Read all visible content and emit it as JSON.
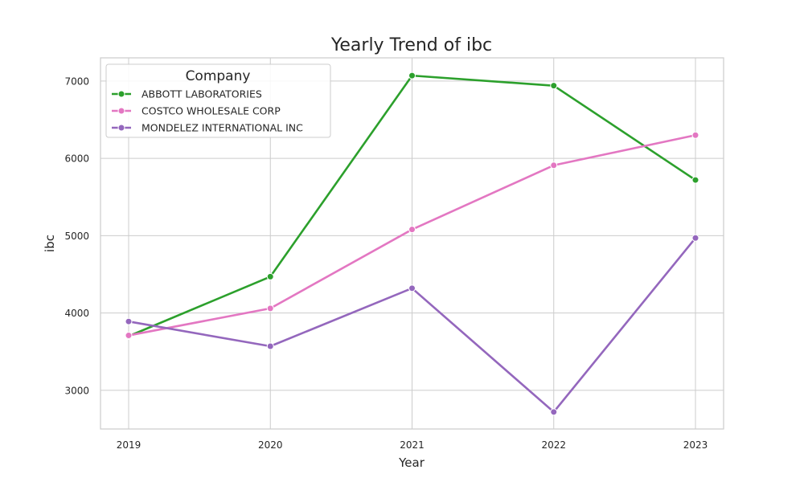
{
  "chart_data": {
    "type": "line",
    "title": "Yearly Trend of ibc",
    "xlabel": "Year",
    "ylabel": "ibc",
    "x": [
      "2019",
      "2020",
      "2021",
      "2022",
      "2023"
    ],
    "yticks": [
      "3000",
      "4000",
      "5000",
      "6000",
      "7000"
    ],
    "ylim": [
      2500,
      7300
    ],
    "grid": true,
    "legend": {
      "title": "Company",
      "placement": "top-left"
    },
    "series": [
      {
        "name": "ABBOTT LABORATORIES",
        "color": "#2ca02c",
        "values": [
          3700,
          4470,
          7070,
          6940,
          5720
        ]
      },
      {
        "name": "COSTCO WHOLESALE CORP",
        "color": "#e377c2",
        "values": [
          3710,
          4060,
          5080,
          5910,
          6300
        ]
      },
      {
        "name": "MONDELEZ INTERNATIONAL INC",
        "color": "#9467bd",
        "values": [
          3890,
          3570,
          4320,
          2720,
          4970
        ]
      }
    ]
  }
}
